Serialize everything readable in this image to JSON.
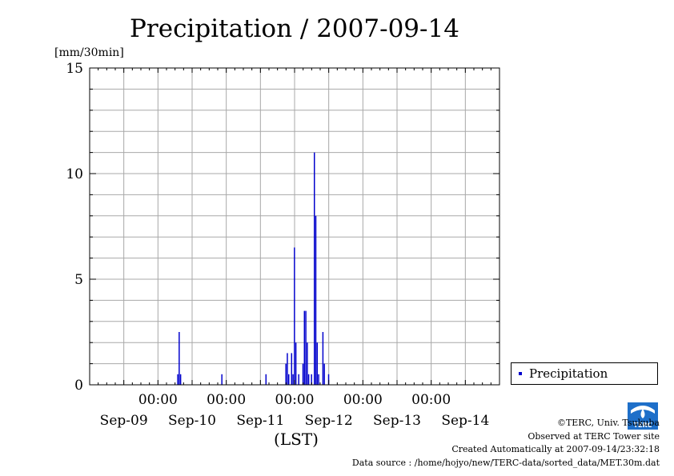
{
  "chart_data": {
    "type": "bar",
    "title": "Precipitation / 2007-09-14",
    "ylabel": "[mm/30min]",
    "xlabel": "(LST)",
    "ylim": [
      0,
      15
    ],
    "y_ticks": [
      "0",
      "5",
      "10",
      "15"
    ],
    "x_time_labels": [
      "00:00",
      "00:00",
      "00:00",
      "00:00",
      "00:00"
    ],
    "x_date_labels": [
      "Sep-09",
      "Sep-10",
      "Sep-11",
      "Sep-12",
      "Sep-13",
      "Sep-14"
    ],
    "xlim": [
      "2007-09-09 00:00",
      "2007-09-15 00:00"
    ],
    "grid": true,
    "color": "#0000cc",
    "series": [
      {
        "name": "Precipitation",
        "points": [
          {
            "x": "2007-09-10 07:00",
            "y": 0.5
          },
          {
            "x": "2007-09-10 07:30",
            "y": 2.5
          },
          {
            "x": "2007-09-10 08:00",
            "y": 0.5
          },
          {
            "x": "2007-09-10 22:30",
            "y": 0.5
          },
          {
            "x": "2007-09-11 14:00",
            "y": 0.5
          },
          {
            "x": "2007-09-11 21:00",
            "y": 1.0
          },
          {
            "x": "2007-09-11 21:30",
            "y": 1.5
          },
          {
            "x": "2007-09-11 22:00",
            "y": 0.5
          },
          {
            "x": "2007-09-11 23:00",
            "y": 1.5
          },
          {
            "x": "2007-09-11 23:30",
            "y": 0.5
          },
          {
            "x": "2007-09-12 00:00",
            "y": 6.5
          },
          {
            "x": "2007-09-12 00:30",
            "y": 2.0
          },
          {
            "x": "2007-09-12 01:30",
            "y": 0.5
          },
          {
            "x": "2007-09-12 03:00",
            "y": 1.0
          },
          {
            "x": "2007-09-12 03:30",
            "y": 3.5
          },
          {
            "x": "2007-09-12 04:00",
            "y": 3.5
          },
          {
            "x": "2007-09-12 04:30",
            "y": 2.0
          },
          {
            "x": "2007-09-12 05:00",
            "y": 0.5
          },
          {
            "x": "2007-09-12 06:00",
            "y": 0.5
          },
          {
            "x": "2007-09-12 07:00",
            "y": 11.0
          },
          {
            "x": "2007-09-12 07:30",
            "y": 8.0
          },
          {
            "x": "2007-09-12 08:00",
            "y": 2.0
          },
          {
            "x": "2007-09-12 08:30",
            "y": 0.5
          },
          {
            "x": "2007-09-12 10:00",
            "y": 2.5
          },
          {
            "x": "2007-09-12 10:30",
            "y": 1.0
          },
          {
            "x": "2007-09-12 12:00",
            "y": 0.5
          }
        ]
      }
    ],
    "legend": {
      "label": "Precipitation",
      "placement": "bottom-right outside"
    }
  },
  "credits": {
    "line1": "©TERC, Univ. Tsukuba",
    "line2": "Observed at TERC Tower site",
    "line3": "Created Automatically at 2007-09-14/23:32:18",
    "line4": "Data source : /home/hojyo/new/TERC-data/sorted_data/MET.30m.dat"
  },
  "logo": {
    "text": "TERC",
    "color": "#1e6fc9"
  }
}
